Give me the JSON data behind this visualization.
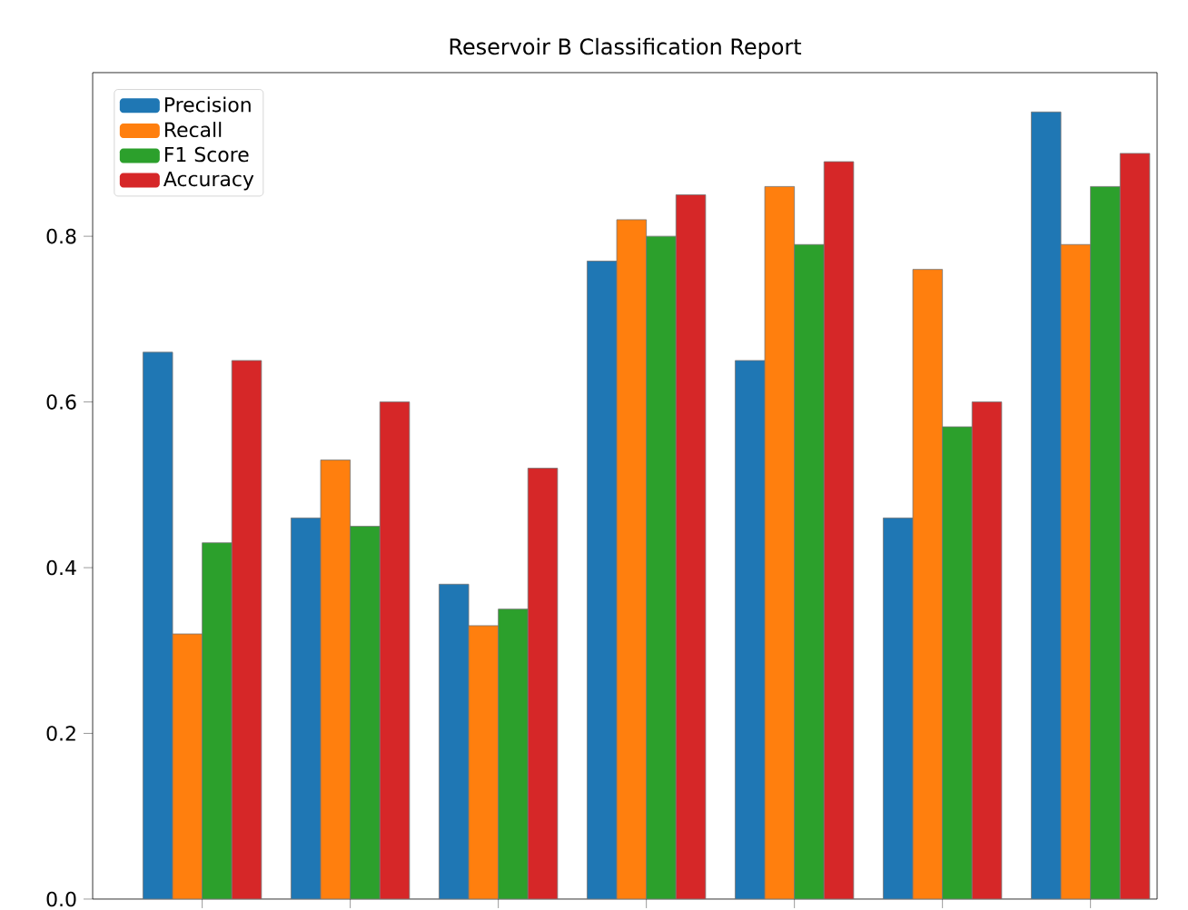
{
  "chart_data": {
    "type": "bar",
    "title": "Reservoir B Classification Report",
    "categories": [
      null,
      null,
      null,
      null,
      null,
      null,
      null
    ],
    "series": [
      {
        "name": "Precision",
        "color": "#1f77b4",
        "values": [
          0.66,
          0.46,
          0.38,
          0.77,
          0.65,
          0.46,
          0.95
        ]
      },
      {
        "name": "Recall",
        "color": "#ff7f0e",
        "values": [
          0.32,
          0.53,
          0.33,
          0.82,
          0.86,
          0.76,
          0.79
        ]
      },
      {
        "name": "F1 Score",
        "color": "#2ca02c",
        "values": [
          0.43,
          0.45,
          0.35,
          0.8,
          0.79,
          0.57,
          0.86
        ]
      },
      {
        "name": "Accuracy",
        "color": "#d62728",
        "values": [
          0.65,
          0.6,
          0.52,
          0.85,
          0.89,
          0.6,
          0.9
        ]
      }
    ],
    "ylim": [
      0,
      0.9975
    ],
    "yticks": [
      {
        "value": 0,
        "label": "0.0"
      },
      0.2,
      0.4,
      0.6,
      0.8
    ],
    "tick_labels": "y",
    "legend": "top left",
    "grid": false
  }
}
